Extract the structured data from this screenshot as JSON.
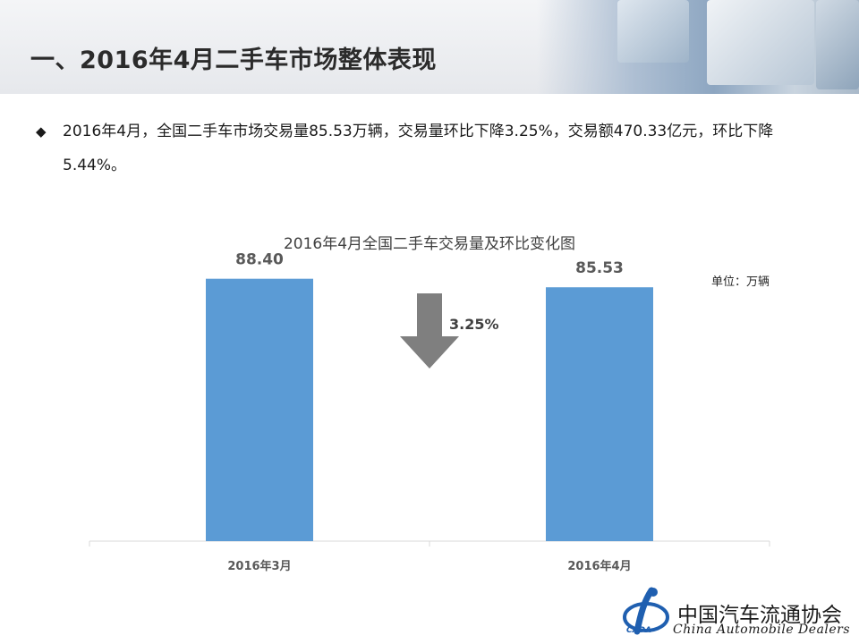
{
  "header": {
    "title": "一、2016年4月二手车市场整体表现"
  },
  "bullet": {
    "symbol": "◆",
    "text": "2016年4月，全国二手车市场交易量85.53万辆，交易量环比下降3.25%，交易额470.33亿元，环比下降5.44%。"
  },
  "chart_data": {
    "type": "bar",
    "title": "2016年4月全国二手车交易量及环比变化图",
    "unit_label": "单位：万辆",
    "categories": [
      "2016年3月",
      "2016年4月"
    ],
    "values": [
      88.4,
      85.53
    ],
    "value_labels": [
      "88.40",
      "85.53"
    ],
    "change_label": "3.25%",
    "change_direction": "down",
    "ylim": [
      0,
      110
    ],
    "grid": false,
    "bar_color": "#5b9bd5",
    "arrow_color": "#7f7f7f"
  },
  "footer": {
    "org_cn": "中国汽车流通协会",
    "org_en": "China  Automobile Dealers",
    "abbr": "CADA",
    "brand_color": "#1f5fb0"
  }
}
